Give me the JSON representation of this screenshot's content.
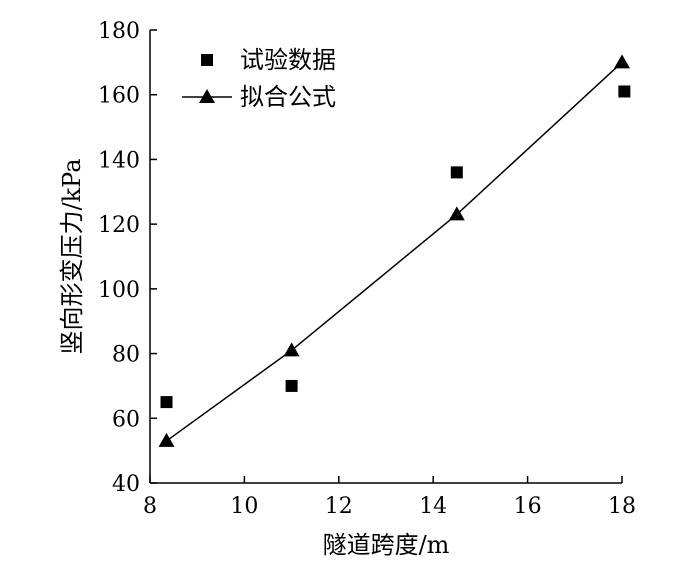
{
  "chart_data": {
    "type": "scatter",
    "xlabel": "隧道跨度/m",
    "ylabel": "竖向形变压力/kPa",
    "xlim": [
      8,
      18
    ],
    "ylim": [
      40,
      180
    ],
    "xticks": [
      8,
      10,
      12,
      14,
      16,
      18
    ],
    "yticks": [
      40,
      60,
      80,
      100,
      120,
      140,
      160,
      180
    ],
    "grid": false,
    "legend_position": "top-left",
    "series": [
      {
        "name": "试验数据",
        "marker": "square",
        "line": false,
        "x": [
          8.35,
          11.0,
          14.5,
          18.05
        ],
        "y": [
          65,
          70,
          136,
          161
        ]
      },
      {
        "name": "拟合公式",
        "marker": "triangle",
        "line": true,
        "x": [
          8.35,
          11.0,
          14.5,
          18.0
        ],
        "y": [
          53,
          81,
          123,
          170
        ]
      }
    ],
    "colors": {
      "marks": "#000000",
      "background": "#ffffff"
    }
  }
}
